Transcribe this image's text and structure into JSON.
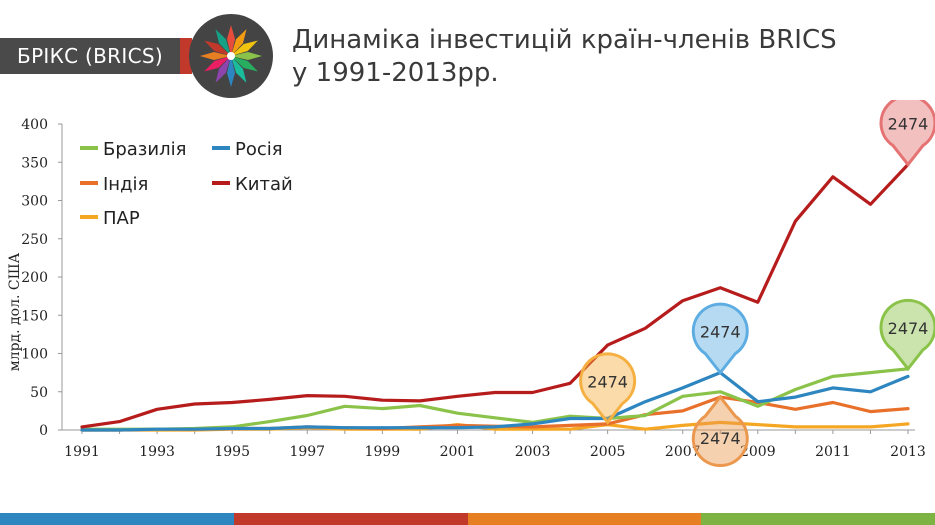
{
  "header": {
    "badge_label": "БРІКС (BRICS)",
    "title_line1": "Динаміка інвестицій країн-членів BRICS",
    "title_line2": "у 1991-2013рр."
  },
  "colors": {
    "badge_bg": "#4a4a4a",
    "accent_red": "#c0392b",
    "bottom_bar": [
      "#2e86c1",
      "#c0392b",
      "#e67e22",
      "#7cb342"
    ]
  },
  "chart_data": {
    "type": "line",
    "title": "",
    "xlabel": "",
    "ylabel": "млрд. дол. США",
    "ylim": [
      0,
      400
    ],
    "yticks": [
      0,
      50,
      100,
      150,
      200,
      250,
      300,
      350,
      400
    ],
    "xticks": [
      1991,
      1993,
      1995,
      1997,
      1999,
      2001,
      2003,
      2005,
      2007,
      2009,
      2011,
      2013
    ],
    "x": [
      1991,
      1992,
      1993,
      1994,
      1995,
      1996,
      1997,
      1998,
      1999,
      2000,
      2001,
      2002,
      2003,
      2004,
      2005,
      2006,
      2007,
      2008,
      2009,
      2010,
      2011,
      2012,
      2013
    ],
    "grid": false,
    "legend_position": "top-left",
    "series": [
      {
        "name": "Бразилія",
        "color": "#8bc34a",
        "values": [
          1,
          1,
          1,
          2,
          4,
          11,
          19,
          31,
          28,
          32,
          22,
          16,
          10,
          18,
          15,
          19,
          44,
          50,
          31,
          53,
          70,
          75,
          80
        ]
      },
      {
        "name": "Росія",
        "color": "#2e86c1",
        "values": [
          0,
          0,
          1,
          1,
          2,
          2,
          4,
          3,
          3,
          3,
          3,
          4,
          8,
          15,
          15,
          37,
          55,
          75,
          37,
          43,
          55,
          50,
          70
        ]
      },
      {
        "name": "Індія",
        "color": "#e8702a",
        "values": [
          0,
          0,
          1,
          1,
          2,
          2,
          4,
          3,
          2,
          4,
          6,
          5,
          4,
          6,
          8,
          20,
          25,
          43,
          36,
          27,
          36,
          24,
          28
        ]
      },
      {
        "name": "Китай",
        "color": "#b71c1c",
        "values": [
          4,
          11,
          27,
          34,
          36,
          40,
          45,
          44,
          39,
          38,
          44,
          49,
          49,
          61,
          111,
          133,
          169,
          186,
          167,
          273,
          331,
          295,
          347
        ]
      },
      {
        "name": "ПАР",
        "color": "#f5a623",
        "values": [
          0,
          0,
          0,
          0,
          1,
          1,
          3,
          1,
          1,
          1,
          7,
          1,
          1,
          1,
          7,
          1,
          6,
          10,
          7,
          4,
          4,
          4,
          8
        ]
      }
    ],
    "annotations": [
      {
        "label": "2474",
        "series": "Китай",
        "x": 2013,
        "y": 347,
        "direction": "down",
        "color": "#e57373"
      },
      {
        "label": "2474",
        "series": "Бразилія",
        "x": 2013,
        "y": 80,
        "direction": "down",
        "color": "#8bc34a"
      },
      {
        "label": "2474",
        "series": "Росія",
        "x": 2008,
        "y": 75,
        "direction": "down",
        "color": "#5dade2"
      },
      {
        "label": "2474",
        "series": "ПАР",
        "x": 2005,
        "y": 10,
        "direction": "down",
        "color": "#f5b041"
      },
      {
        "label": "2474",
        "series": "Індія",
        "x": 2008,
        "y": 43,
        "direction": "up",
        "color": "#eb984e"
      }
    ]
  }
}
